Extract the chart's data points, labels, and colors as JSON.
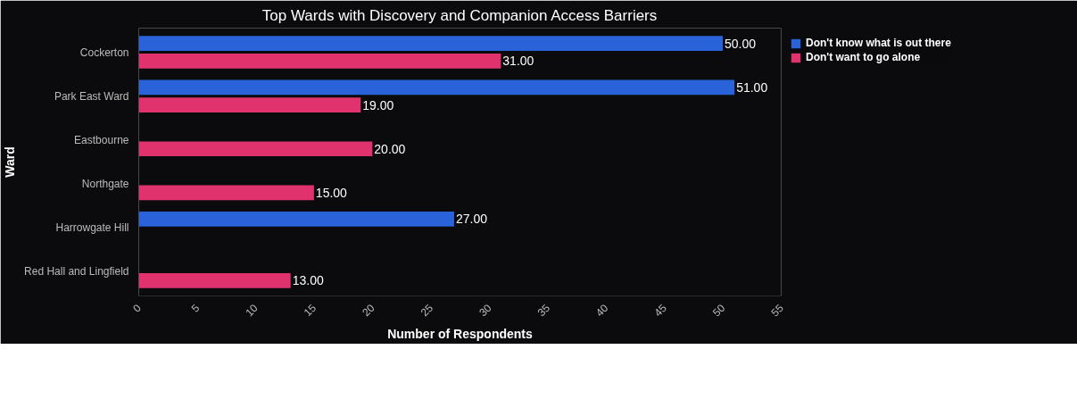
{
  "chart_data": {
    "type": "bar",
    "orientation": "horizontal",
    "title": "Top Wards with Discovery and Companion Access Barriers",
    "xlabel": "Number of Respondents",
    "ylabel": "Ward",
    "categories": [
      "Cockerton",
      "Park East Ward",
      "Eastbourne",
      "Northgate",
      "Harrowgate Hill",
      "Red Hall and Lingfield"
    ],
    "series": [
      {
        "name": "Don't know what is out there",
        "color": "#2962d9",
        "values": [
          50,
          51,
          null,
          null,
          27,
          null
        ],
        "value_labels": [
          "50.00",
          "51.00",
          null,
          null,
          "27.00",
          null
        ]
      },
      {
        "name": "Don't want to go alone",
        "color": "#e0336e",
        "values": [
          31,
          19,
          20,
          15,
          null,
          13
        ],
        "value_labels": [
          "31.00",
          "19.00",
          "20.00",
          "15.00",
          null,
          "13.00"
        ]
      }
    ],
    "xlim": [
      0,
      55
    ],
    "xticks": [
      0,
      5,
      10,
      15,
      20,
      25,
      30,
      35,
      40,
      45,
      50,
      55
    ],
    "grid": false,
    "legend": "top right"
  }
}
